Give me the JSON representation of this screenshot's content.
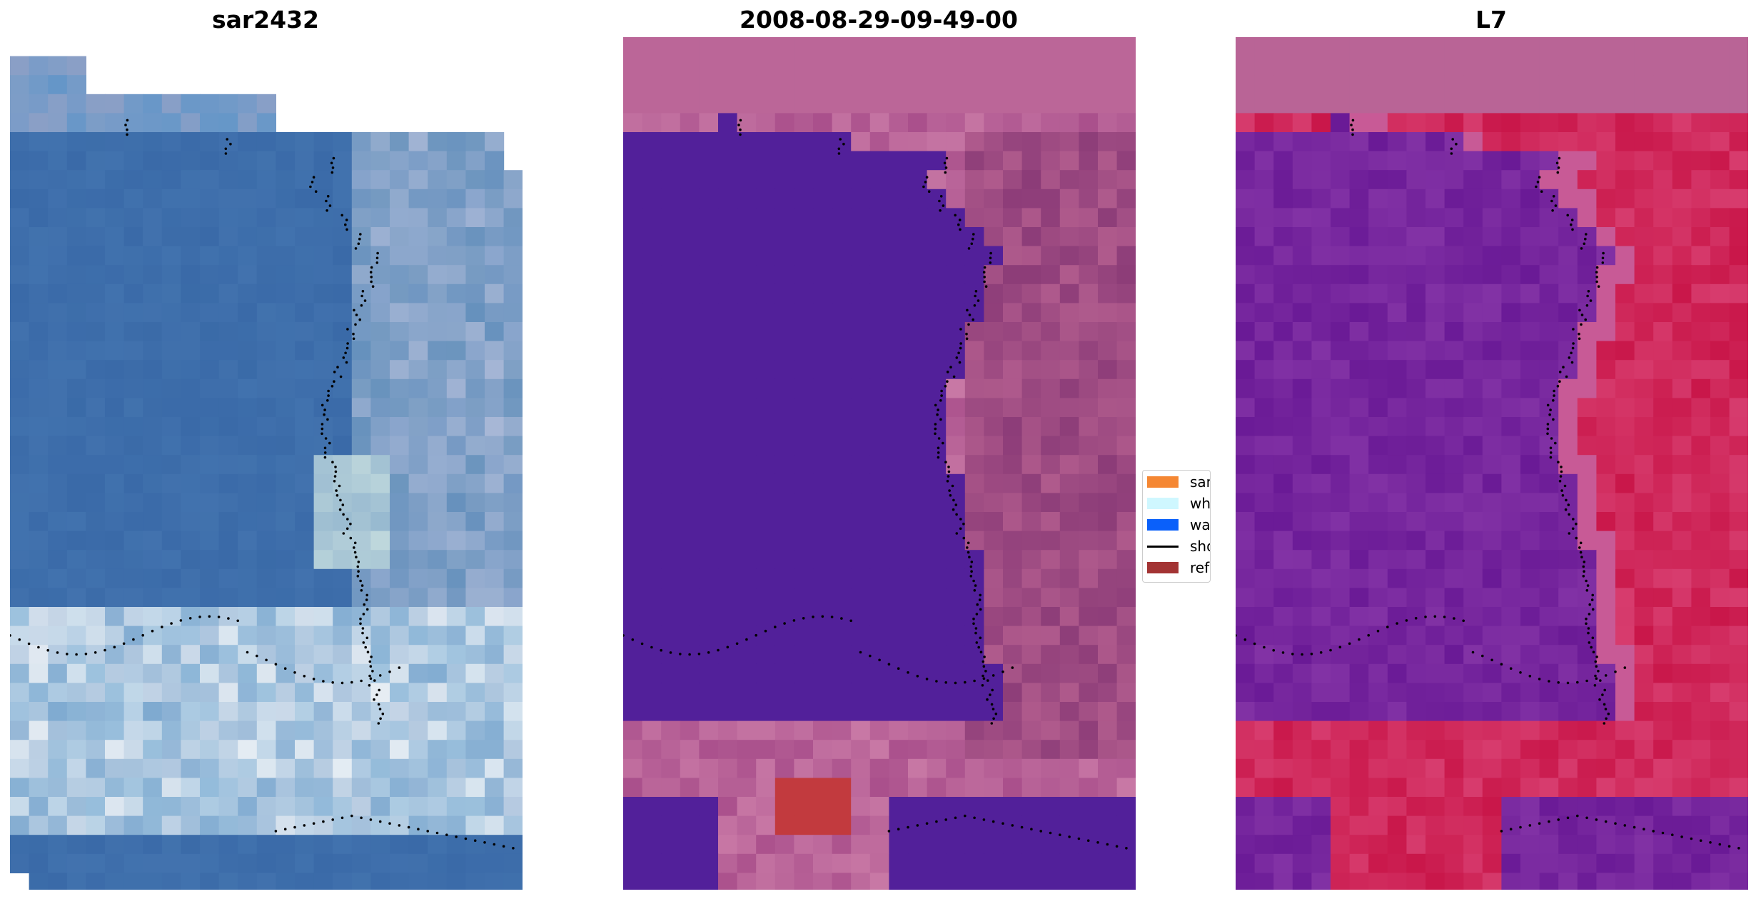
{
  "panels": [
    {
      "title": "sar2432",
      "kind": "rgb-image"
    },
    {
      "title": "2008-08-29-09-49-00",
      "kind": "classified-overlay"
    },
    {
      "title": "L7",
      "kind": "probability-image"
    }
  ],
  "legend": {
    "items": [
      {
        "label": "sand",
        "color": "#f58733",
        "type": "patch"
      },
      {
        "label": "whitewater",
        "color": "#cff7ff",
        "type": "patch"
      },
      {
        "label": "water",
        "color": "#0a60fa",
        "type": "patch"
      },
      {
        "label": "shoreline",
        "color": "#000000",
        "type": "line"
      },
      {
        "label": "reference shoreline",
        "color": "#a33434",
        "type": "patch"
      }
    ]
  },
  "colors": {
    "water_class": "#52209a",
    "land_pink": "#bb6698",
    "land_dark": "#8a3a76",
    "reference_red": "#c23a3e",
    "rgb_blue": "#3a6aa8",
    "rgb_light": "#b4c4dc",
    "prob_red": "#c9174a",
    "prob_purple": "#6a1a96"
  }
}
